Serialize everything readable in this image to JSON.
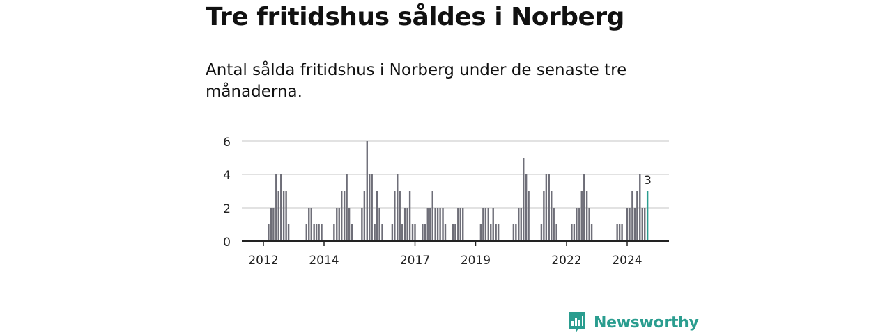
{
  "header": {
    "title": "Tre fritidshus såldes i Norberg",
    "subtitle": "Antal sålda fritidshus i Norberg under de senaste tre månaderna."
  },
  "brand": {
    "name": "Newsworthy",
    "icon": "newsworthy-logo-icon",
    "color": "#2a9d8f"
  },
  "chart_data": {
    "type": "bar",
    "x_unit": "year",
    "ylim": [
      0,
      6
    ],
    "yticks": [
      0,
      2,
      4,
      6
    ],
    "xticks": [
      {
        "x": 2012,
        "label": "2012"
      },
      {
        "x": 2014,
        "label": "2014"
      },
      {
        "x": 2017,
        "label": "2017"
      },
      {
        "x": 2019,
        "label": "2019"
      },
      {
        "x": 2022,
        "label": "2022"
      },
      {
        "x": 2024,
        "label": "2024"
      }
    ],
    "grid": true,
    "bar_color": "#6e6e78",
    "highlight_color": "#2a9d8f",
    "highlight_label": "3",
    "bars": [
      {
        "x": 2012.17,
        "y": 1
      },
      {
        "x": 2012.25,
        "y": 2
      },
      {
        "x": 2012.33,
        "y": 2
      },
      {
        "x": 2012.42,
        "y": 4
      },
      {
        "x": 2012.5,
        "y": 3
      },
      {
        "x": 2012.58,
        "y": 4
      },
      {
        "x": 2012.67,
        "y": 3
      },
      {
        "x": 2012.75,
        "y": 3
      },
      {
        "x": 2012.83,
        "y": 1
      },
      {
        "x": 2013.42,
        "y": 1
      },
      {
        "x": 2013.5,
        "y": 2
      },
      {
        "x": 2013.58,
        "y": 2
      },
      {
        "x": 2013.67,
        "y": 1
      },
      {
        "x": 2013.75,
        "y": 1
      },
      {
        "x": 2013.83,
        "y": 1
      },
      {
        "x": 2013.92,
        "y": 1
      },
      {
        "x": 2014.33,
        "y": 1
      },
      {
        "x": 2014.42,
        "y": 2
      },
      {
        "x": 2014.5,
        "y": 2
      },
      {
        "x": 2014.58,
        "y": 3
      },
      {
        "x": 2014.67,
        "y": 3
      },
      {
        "x": 2014.75,
        "y": 4
      },
      {
        "x": 2014.83,
        "y": 2
      },
      {
        "x": 2014.92,
        "y": 1
      },
      {
        "x": 2015.25,
        "y": 2
      },
      {
        "x": 2015.33,
        "y": 3
      },
      {
        "x": 2015.42,
        "y": 6
      },
      {
        "x": 2015.5,
        "y": 4
      },
      {
        "x": 2015.58,
        "y": 4
      },
      {
        "x": 2015.67,
        "y": 1
      },
      {
        "x": 2015.75,
        "y": 3
      },
      {
        "x": 2015.83,
        "y": 2
      },
      {
        "x": 2015.92,
        "y": 1
      },
      {
        "x": 2016.25,
        "y": 1
      },
      {
        "x": 2016.33,
        "y": 3
      },
      {
        "x": 2016.42,
        "y": 4
      },
      {
        "x": 2016.5,
        "y": 3
      },
      {
        "x": 2016.58,
        "y": 1
      },
      {
        "x": 2016.67,
        "y": 2
      },
      {
        "x": 2016.75,
        "y": 2
      },
      {
        "x": 2016.83,
        "y": 3
      },
      {
        "x": 2016.92,
        "y": 1
      },
      {
        "x": 2017.0,
        "y": 1
      },
      {
        "x": 2017.25,
        "y": 1
      },
      {
        "x": 2017.33,
        "y": 1
      },
      {
        "x": 2017.42,
        "y": 2
      },
      {
        "x": 2017.5,
        "y": 2
      },
      {
        "x": 2017.58,
        "y": 3
      },
      {
        "x": 2017.67,
        "y": 2
      },
      {
        "x": 2017.75,
        "y": 2
      },
      {
        "x": 2017.83,
        "y": 2
      },
      {
        "x": 2017.92,
        "y": 2
      },
      {
        "x": 2018.0,
        "y": 1
      },
      {
        "x": 2018.25,
        "y": 1
      },
      {
        "x": 2018.33,
        "y": 1
      },
      {
        "x": 2018.42,
        "y": 2
      },
      {
        "x": 2018.5,
        "y": 2
      },
      {
        "x": 2018.58,
        "y": 2
      },
      {
        "x": 2019.17,
        "y": 1
      },
      {
        "x": 2019.25,
        "y": 2
      },
      {
        "x": 2019.33,
        "y": 2
      },
      {
        "x": 2019.42,
        "y": 2
      },
      {
        "x": 2019.5,
        "y": 1
      },
      {
        "x": 2019.58,
        "y": 2
      },
      {
        "x": 2019.67,
        "y": 1
      },
      {
        "x": 2019.75,
        "y": 1
      },
      {
        "x": 2020.25,
        "y": 1
      },
      {
        "x": 2020.33,
        "y": 1
      },
      {
        "x": 2020.42,
        "y": 2
      },
      {
        "x": 2020.5,
        "y": 2
      },
      {
        "x": 2020.58,
        "y": 5
      },
      {
        "x": 2020.67,
        "y": 4
      },
      {
        "x": 2020.75,
        "y": 3
      },
      {
        "x": 2021.17,
        "y": 1
      },
      {
        "x": 2021.25,
        "y": 3
      },
      {
        "x": 2021.33,
        "y": 4
      },
      {
        "x": 2021.42,
        "y": 4
      },
      {
        "x": 2021.5,
        "y": 3
      },
      {
        "x": 2021.58,
        "y": 2
      },
      {
        "x": 2021.67,
        "y": 1
      },
      {
        "x": 2022.17,
        "y": 1
      },
      {
        "x": 2022.25,
        "y": 1
      },
      {
        "x": 2022.33,
        "y": 2
      },
      {
        "x": 2022.42,
        "y": 2
      },
      {
        "x": 2022.5,
        "y": 3
      },
      {
        "x": 2022.58,
        "y": 4
      },
      {
        "x": 2022.67,
        "y": 3
      },
      {
        "x": 2022.75,
        "y": 2
      },
      {
        "x": 2022.83,
        "y": 1
      },
      {
        "x": 2023.67,
        "y": 1
      },
      {
        "x": 2023.75,
        "y": 1
      },
      {
        "x": 2023.83,
        "y": 1
      },
      {
        "x": 2024.0,
        "y": 2
      },
      {
        "x": 2024.08,
        "y": 2
      },
      {
        "x": 2024.17,
        "y": 3
      },
      {
        "x": 2024.25,
        "y": 2
      },
      {
        "x": 2024.33,
        "y": 3
      },
      {
        "x": 2024.42,
        "y": 4
      },
      {
        "x": 2024.5,
        "y": 2
      },
      {
        "x": 2024.58,
        "y": 2
      },
      {
        "x": 2024.67,
        "y": 3,
        "highlight": true
      }
    ]
  }
}
